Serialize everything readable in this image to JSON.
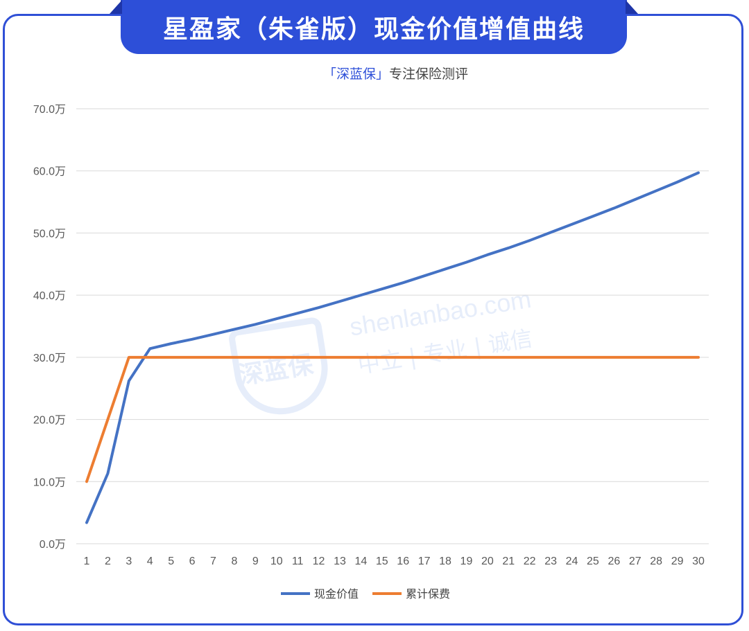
{
  "header": {
    "title": "星盈家（朱雀版）现金价值增值曲线",
    "subtitle_brand": "「深蓝保」",
    "subtitle_rest": "专注保险测评"
  },
  "watermark": {
    "logo_text": "深蓝保",
    "url": "shenlanbao.com",
    "tagline": "中立 | 专业 | 诚信"
  },
  "colors": {
    "frame": "#2f4fd6",
    "title_bg": "#2d4fd8",
    "cash_value_line": "#4472c4",
    "premium_line": "#ed7d31",
    "grid": "#d9d9d9"
  },
  "chart_data": {
    "type": "line",
    "x": [
      1,
      2,
      3,
      4,
      5,
      6,
      7,
      8,
      9,
      10,
      11,
      12,
      13,
      14,
      15,
      16,
      17,
      18,
      19,
      20,
      21,
      22,
      23,
      24,
      25,
      26,
      27,
      28,
      29,
      30
    ],
    "y_tick_labels": [
      "0.0万",
      "10.0万",
      "20.0万",
      "30.0万",
      "40.0万",
      "50.0万",
      "60.0万",
      "70.0万"
    ],
    "ylim": [
      0,
      70
    ],
    "y_unit": "万",
    "grid": true,
    "legend_position": "bottom",
    "series": [
      {
        "name": "现金价值",
        "color": "#4472c4",
        "values": [
          3.4,
          11.3,
          26.2,
          31.4,
          32.2,
          32.9,
          33.7,
          34.5,
          35.3,
          36.2,
          37.1,
          38.0,
          39.0,
          40.0,
          41.0,
          42.0,
          43.1,
          44.2,
          45.3,
          46.5,
          47.6,
          48.8,
          50.1,
          51.4,
          52.7,
          54.0,
          55.4,
          56.8,
          58.2,
          59.7
        ]
      },
      {
        "name": "累计保费",
        "color": "#ed7d31",
        "values": [
          10.0,
          20.0,
          30.0,
          30.0,
          30.0,
          30.0,
          30.0,
          30.0,
          30.0,
          30.0,
          30.0,
          30.0,
          30.0,
          30.0,
          30.0,
          30.0,
          30.0,
          30.0,
          30.0,
          30.0,
          30.0,
          30.0,
          30.0,
          30.0,
          30.0,
          30.0,
          30.0,
          30.0,
          30.0,
          30.0
        ]
      }
    ]
  }
}
